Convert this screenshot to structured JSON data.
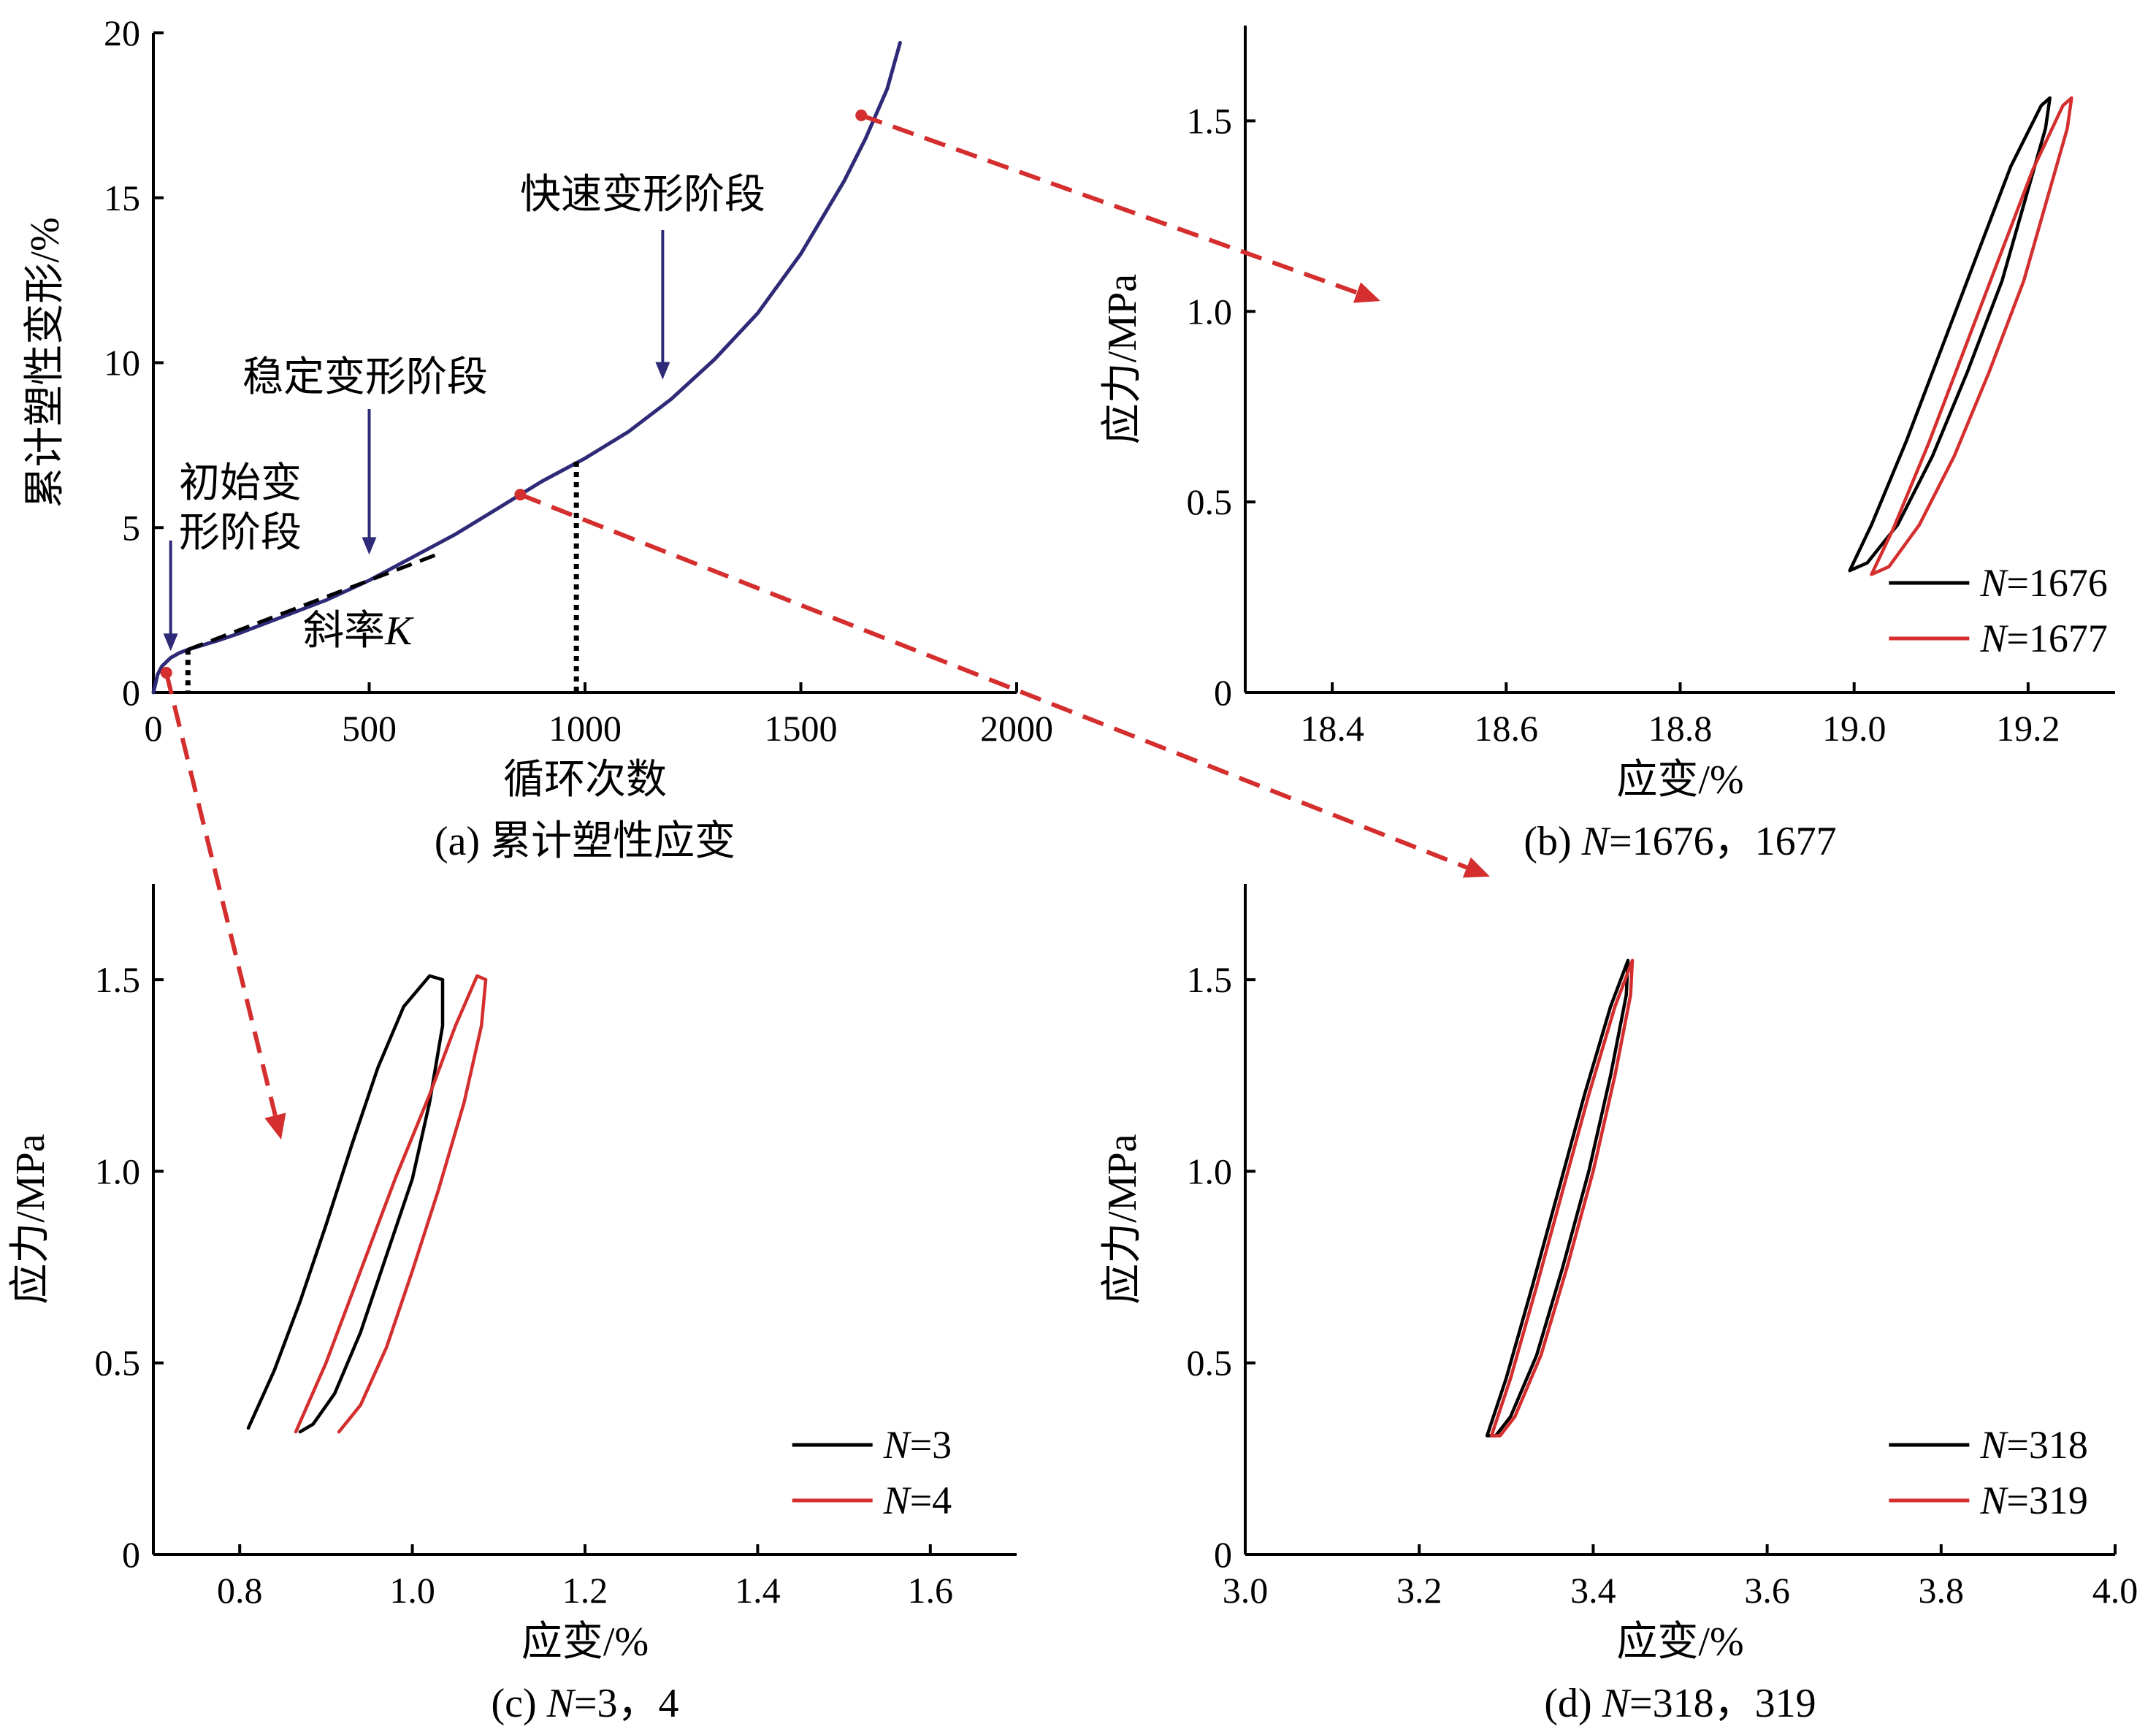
{
  "chart_data": [
    {
      "type": "line",
      "panel": "a",
      "caption": "(a) 累计塑性应变",
      "xlabel": "循环次数",
      "ylabel": "累计塑性变形/%",
      "xlim": [
        0,
        2000
      ],
      "ylim": [
        0,
        20
      ],
      "xticks": [
        "0",
        "500",
        "1000",
        "1500",
        "2000"
      ],
      "yticks": [
        "0",
        "5",
        "10",
        "15",
        "20"
      ],
      "grid": false,
      "color": "#2e2a78",
      "series": [
        {
          "x": [
            0,
            10,
            20,
            40,
            60,
            80,
            100,
            150,
            200,
            300,
            400,
            500,
            600,
            700,
            800,
            900,
            1000,
            1100,
            1200,
            1300,
            1400,
            1500,
            1600,
            1650,
            1700,
            1730
          ],
          "y": [
            0,
            0.55,
            0.8,
            1.05,
            1.2,
            1.3,
            1.38,
            1.58,
            1.8,
            2.3,
            2.8,
            3.4,
            4.1,
            4.8,
            5.6,
            6.4,
            7.1,
            7.9,
            8.9,
            10.1,
            11.5,
            13.3,
            15.5,
            16.8,
            18.3,
            19.7
          ]
        }
      ],
      "slope_line": {
        "x": [
          80,
          660
        ],
        "y": [
          1.3,
          4.2
        ]
      },
      "markers": [
        {
          "x": 80,
          "y": 1.3
        },
        {
          "x": 980,
          "y": 7.0
        }
      ],
      "annotations": [
        {
          "text": "初始变",
          "text2": "形阶段",
          "x": 40,
          "y": 1.2
        },
        {
          "text": "稳定变形阶段",
          "x": 500,
          "y": 4.0
        },
        {
          "text": "快速变形阶段",
          "x": 1180,
          "y": 9.4
        },
        {
          "text": "斜率",
          "text_italic": "K",
          "x": 380,
          "y": 2.5
        }
      ]
    },
    {
      "type": "line",
      "panel": "b",
      "caption_pre": "(b) ",
      "caption_italic": "N",
      "caption_post": "=1676，1677",
      "xlabel": "应变/%",
      "ylabel": "应力/MPa",
      "xlim": [
        18.3,
        19.3
      ],
      "ylim": [
        0,
        1.75
      ],
      "xticks": [
        "18.4",
        "18.6",
        "18.8",
        "19.0",
        "19.2"
      ],
      "yticks": [
        "0",
        "0.5",
        "1.0",
        "1.5"
      ],
      "legend": "bottom-right",
      "series": [
        {
          "name_italic": "N",
          "name_post": "=1676",
          "color": "#000000",
          "x": [
            18.995,
            19.02,
            19.06,
            19.1,
            19.14,
            19.18,
            19.215,
            19.225,
            19.22,
            19.2,
            19.17,
            19.13,
            19.09,
            19.05,
            19.015,
            18.995
          ],
          "y": [
            0.32,
            0.44,
            0.66,
            0.9,
            1.14,
            1.38,
            1.54,
            1.56,
            1.48,
            1.32,
            1.08,
            0.84,
            0.62,
            0.44,
            0.34,
            0.32
          ]
        },
        {
          "name_italic": "N",
          "name_post": "=1677",
          "color": "#d42e2e",
          "x": [
            19.02,
            19.045,
            19.085,
            19.125,
            19.165,
            19.205,
            19.24,
            19.25,
            19.245,
            19.225,
            19.195,
            19.155,
            19.115,
            19.075,
            19.04,
            19.02
          ],
          "y": [
            0.31,
            0.43,
            0.65,
            0.89,
            1.13,
            1.37,
            1.54,
            1.56,
            1.48,
            1.32,
            1.08,
            0.84,
            0.62,
            0.44,
            0.33,
            0.31
          ]
        }
      ]
    },
    {
      "type": "line",
      "panel": "c",
      "caption_pre": "(c) ",
      "caption_italic": "N",
      "caption_post": "=3，4",
      "xlabel": "应变/%",
      "ylabel": "应力/MPa",
      "xlim": [
        0.7,
        1.7
      ],
      "ylim": [
        0,
        1.75
      ],
      "xticks": [
        "0.8",
        "1.0",
        "1.2",
        "1.4",
        "1.6"
      ],
      "yticks": [
        "0",
        "0.5",
        "1.0",
        "1.5"
      ],
      "legend": "bottom-right",
      "series": [
        {
          "name_italic": "N",
          "name_post": "=3",
          "color": "#000000",
          "x": [
            0.81,
            0.84,
            0.87,
            0.9,
            0.93,
            0.96,
            0.99,
            1.02,
            1.035,
            1.035,
            1.02,
            1.0,
            0.97,
            0.94,
            0.91,
            0.885,
            0.87
          ],
          "y": [
            0.33,
            0.48,
            0.66,
            0.86,
            1.07,
            1.27,
            1.43,
            1.51,
            1.5,
            1.38,
            1.18,
            0.98,
            0.78,
            0.58,
            0.42,
            0.34,
            0.32
          ]
        },
        {
          "name_italic": "N",
          "name_post": "=4",
          "color": "#d42e2e",
          "x": [
            0.865,
            0.9,
            0.94,
            0.98,
            1.02,
            1.05,
            1.075,
            1.085,
            1.08,
            1.06,
            1.03,
            1.0,
            0.97,
            0.94,
            0.915
          ],
          "y": [
            0.32,
            0.5,
            0.74,
            0.98,
            1.2,
            1.38,
            1.51,
            1.5,
            1.38,
            1.18,
            0.95,
            0.74,
            0.54,
            0.39,
            0.32
          ]
        }
      ]
    },
    {
      "type": "line",
      "panel": "d",
      "caption_pre": "(d) ",
      "caption_italic": "N",
      "caption_post": "=318，319",
      "xlabel": "应变/%",
      "ylabel": "应力/MPa",
      "xlim": [
        3.0,
        4.0
      ],
      "ylim": [
        0,
        1.75
      ],
      "xticks": [
        "3.0",
        "3.2",
        "3.4",
        "3.6",
        "3.8",
        "4.0"
      ],
      "yticks": [
        "0",
        "0.5",
        "1.0",
        "1.5"
      ],
      "legend": "bottom-right",
      "series": [
        {
          "name_italic": "N",
          "name_post": "=318",
          "color": "#000000",
          "x": [
            3.278,
            3.3,
            3.33,
            3.36,
            3.39,
            3.42,
            3.44,
            3.438,
            3.42,
            3.395,
            3.365,
            3.335,
            3.305,
            3.288,
            3.278
          ],
          "y": [
            0.31,
            0.46,
            0.7,
            0.95,
            1.2,
            1.43,
            1.55,
            1.46,
            1.25,
            1.0,
            0.75,
            0.52,
            0.36,
            0.31,
            0.31
          ]
        },
        {
          "name_italic": "N",
          "name_post": "=319",
          "color": "#d42e2e",
          "x": [
            3.283,
            3.305,
            3.335,
            3.365,
            3.395,
            3.425,
            3.445,
            3.443,
            3.425,
            3.4,
            3.37,
            3.34,
            3.31,
            3.293,
            3.283
          ],
          "y": [
            0.31,
            0.46,
            0.7,
            0.95,
            1.2,
            1.43,
            1.55,
            1.46,
            1.25,
            1.0,
            0.75,
            0.52,
            0.36,
            0.31,
            0.31
          ]
        }
      ]
    }
  ],
  "arrow_color": "#d42e2e"
}
